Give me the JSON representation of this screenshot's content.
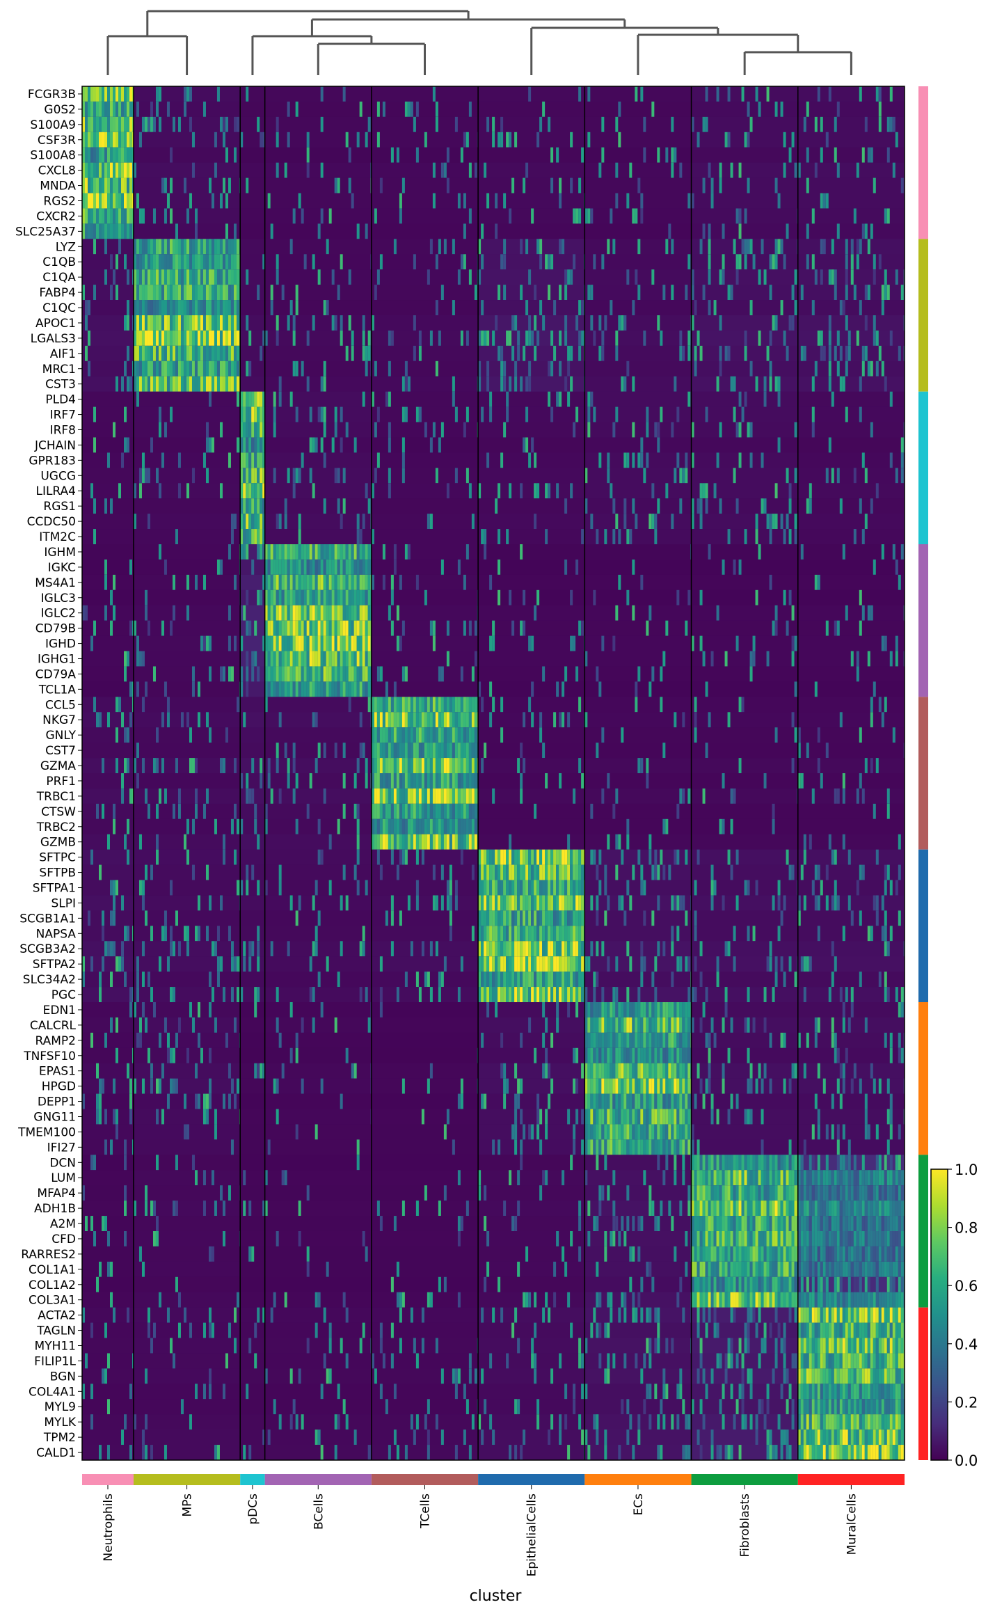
{
  "chart_data": {
    "type": "heatmap",
    "title": "",
    "xlabel": "cluster",
    "ylabel": "",
    "clusters": [
      {
        "name": "Neutrophils",
        "color": "#f88fb4",
        "cells": 98
      },
      {
        "name": "MPs",
        "color": "#b5bd1e",
        "cells": 203
      },
      {
        "name": "pDCs",
        "color": "#1ec4d0",
        "cells": 47
      },
      {
        "name": "BCells",
        "color": "#a264b3",
        "cells": 203
      },
      {
        "name": "TCells",
        "color": "#b25c5c",
        "cells": 203
      },
      {
        "name": "EpithelialCells",
        "color": "#1f6bad",
        "cells": 203
      },
      {
        "name": "ECs",
        "color": "#ff7f0e",
        "cells": 203
      },
      {
        "name": "Fibroblasts",
        "color": "#0d9d3f",
        "cells": 203
      },
      {
        "name": "MuralCells",
        "color": "#ff2323",
        "cells": 203
      }
    ],
    "gene_groups": [
      {
        "cluster": "Neutrophils",
        "genes": [
          "FCGR3B",
          "G0S2",
          "S100A9",
          "CSF3R",
          "S100A8",
          "CXCL8",
          "MNDA",
          "RGS2",
          "CXCR2",
          "SLC25A37"
        ]
      },
      {
        "cluster": "MPs",
        "genes": [
          "LYZ",
          "C1QB",
          "C1QA",
          "FABP4",
          "C1QC",
          "APOC1",
          "LGALS3",
          "AIF1",
          "MRC1",
          "CST3"
        ]
      },
      {
        "cluster": "pDCs",
        "genes": [
          "PLD4",
          "IRF7",
          "IRF8",
          "JCHAIN",
          "GPR183",
          "UGCG",
          "LILRA4",
          "RGS1",
          "CCDC50",
          "ITM2C"
        ]
      },
      {
        "cluster": "BCells",
        "genes": [
          "IGHM",
          "IGKC",
          "MS4A1",
          "IGLC3",
          "IGLC2",
          "CD79B",
          "IGHD",
          "IGHG1",
          "CD79A",
          "TCL1A"
        ]
      },
      {
        "cluster": "TCells",
        "genes": [
          "CCL5",
          "NKG7",
          "GNLY",
          "CST7",
          "GZMA",
          "PRF1",
          "TRBC1",
          "CTSW",
          "TRBC2",
          "GZMB"
        ]
      },
      {
        "cluster": "EpithelialCells",
        "genes": [
          "SFTPC",
          "SFTPB",
          "SFTPA1",
          "SLPI",
          "SCGB1A1",
          "NAPSA",
          "SCGB3A2",
          "SFTPA2",
          "SLC34A2",
          "PGC"
        ]
      },
      {
        "cluster": "ECs",
        "genes": [
          "EDN1",
          "CALCRL",
          "RAMP2",
          "TNFSF10",
          "EPAS1",
          "HPGD",
          "DEPP1",
          "GNG11",
          "TMEM100",
          "IFI27"
        ]
      },
      {
        "cluster": "Fibroblasts",
        "genes": [
          "DCN",
          "LUM",
          "MFAP4",
          "ADH1B",
          "A2M",
          "CFD",
          "RARRES2",
          "COL1A1",
          "COL1A2",
          "COL3A1"
        ]
      },
      {
        "cluster": "MuralCells",
        "genes": [
          "ACTA2",
          "TAGLN",
          "MYH11",
          "FILIP1L",
          "BGN",
          "COL4A1",
          "MYL9",
          "MYLK",
          "TPM2",
          "CALD1"
        ]
      }
    ],
    "value_range": [
      0.0,
      1.0
    ],
    "colormap": "viridis",
    "colorbar_ticks": [
      "0.0",
      "0.2",
      "0.4",
      "0.6",
      "0.8",
      "1.0"
    ],
    "dendrogram": "top",
    "gene_group_bar": "right",
    "cluster_bar": "bottom",
    "block_means": [
      [
        0.75,
        0.08,
        0.05,
        0.05,
        0.05,
        0.06,
        0.05,
        0.08,
        0.08
      ],
      [
        0.1,
        0.7,
        0.08,
        0.06,
        0.06,
        0.15,
        0.08,
        0.12,
        0.12
      ],
      [
        0.05,
        0.06,
        0.7,
        0.08,
        0.05,
        0.06,
        0.08,
        0.08,
        0.06
      ],
      [
        0.04,
        0.05,
        0.22,
        0.68,
        0.05,
        0.04,
        0.04,
        0.04,
        0.04
      ],
      [
        0.08,
        0.07,
        0.1,
        0.08,
        0.7,
        0.05,
        0.05,
        0.05,
        0.05
      ],
      [
        0.1,
        0.08,
        0.08,
        0.07,
        0.08,
        0.75,
        0.12,
        0.1,
        0.1
      ],
      [
        0.06,
        0.08,
        0.04,
        0.05,
        0.04,
        0.1,
        0.72,
        0.1,
        0.1
      ],
      [
        0.04,
        0.06,
        0.04,
        0.04,
        0.04,
        0.06,
        0.12,
        0.72,
        0.45
      ],
      [
        0.05,
        0.06,
        0.05,
        0.05,
        0.05,
        0.08,
        0.12,
        0.18,
        0.7
      ]
    ],
    "dendrogram_links": [
      {
        "left": "MPs",
        "right": "pDCs"
      },
      {
        "left": "pDCs",
        "right": "BCells"
      },
      {
        "left": "Neutrophils",
        "right": "MPs"
      },
      {
        "left": "BCells",
        "right": "TCells"
      },
      {
        "left": "Fibroblasts",
        "right": "MuralCells"
      },
      {
        "left": "ECs",
        "right": "Fibroblasts"
      },
      {
        "left": "EpithelialCells",
        "right": "ECs"
      },
      {
        "left": "pDCs",
        "right": "EpithelialCells"
      },
      {
        "left": "MPs",
        "right": "ECs"
      }
    ]
  }
}
